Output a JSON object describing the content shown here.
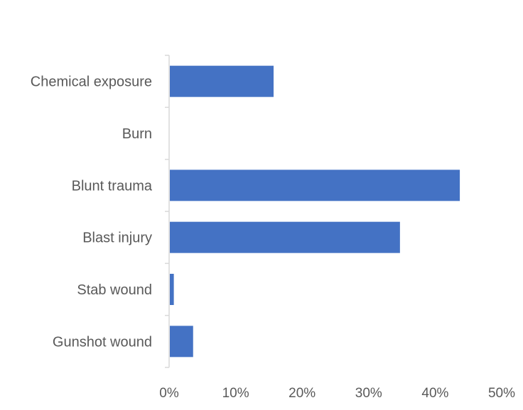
{
  "chart_data": {
    "type": "bar",
    "orientation": "horizontal",
    "title": "",
    "xlabel": "",
    "ylabel": "",
    "categories": [
      "Chemical exposure",
      "Burn",
      "Blunt trauma",
      "Blast injury",
      "Stab wound",
      "Gunshot wound"
    ],
    "values": [
      15.6,
      0,
      43.6,
      34.6,
      0.6,
      3.5
    ],
    "value_unit": "%",
    "xlim": [
      0,
      50
    ],
    "xticks": [
      "0%",
      "10%",
      "20%",
      "30%",
      "40%",
      "50%"
    ],
    "grid": false,
    "legend": "none",
    "bar_color": "#4472C4",
    "axis_color": "#D9D9D9"
  }
}
